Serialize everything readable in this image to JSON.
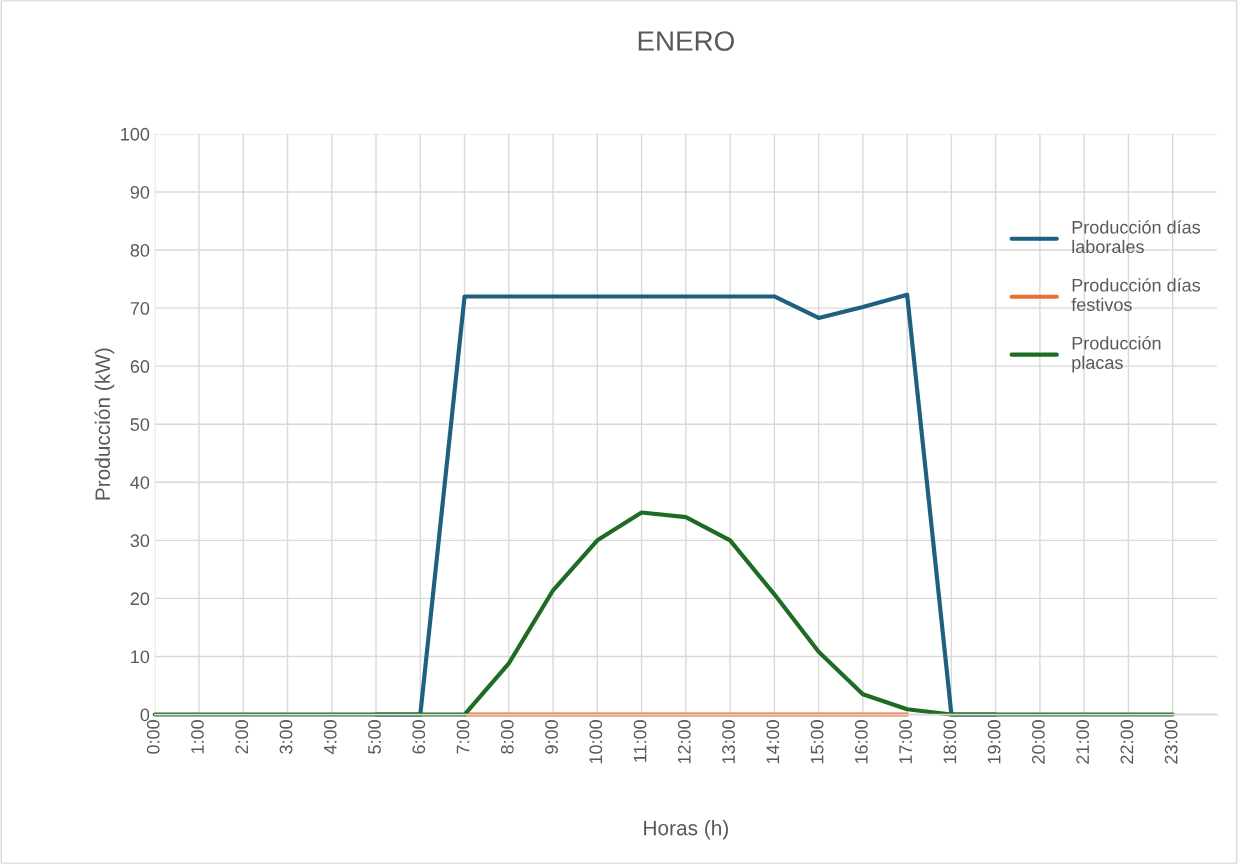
{
  "chart_data": {
    "type": "line",
    "title": "ENERO",
    "xlabel": "Horas (h)",
    "ylabel": "Producción (kW)",
    "categories": [
      "0:00",
      "1:00",
      "2:00",
      "3:00",
      "4:00",
      "5:00",
      "6:00",
      "7:00",
      "8:00",
      "9:00",
      "10:00",
      "11:00",
      "12:00",
      "13:00",
      "14:00",
      "15:00",
      "16:00",
      "17:00",
      "18:00",
      "19:00",
      "20:00",
      "21:00",
      "22:00",
      "23:00"
    ],
    "series": [
      {
        "name": "Producción días laborales",
        "color": "#1f5f80",
        "values": [
          null,
          null,
          null,
          null,
          null,
          0,
          0,
          72,
          72,
          72,
          72,
          72,
          72,
          72,
          72,
          68.3,
          70.2,
          72.3,
          0,
          0,
          null,
          null,
          null,
          null
        ]
      },
      {
        "name": "Producción días festivos",
        "color": "#e97132",
        "values": [
          null,
          null,
          null,
          null,
          null,
          null,
          null,
          0,
          0,
          0,
          0,
          0,
          0,
          0,
          0,
          0,
          0,
          0,
          null,
          null,
          null,
          null,
          null,
          null
        ]
      },
      {
        "name": "Producción placas",
        "color": "#1e6b24",
        "values": [
          0,
          0,
          0,
          0,
          0,
          0,
          0,
          0,
          8.8,
          21.4,
          30,
          34.8,
          34,
          30,
          20.7,
          10.8,
          3.5,
          0.9,
          0,
          0,
          0,
          0,
          0,
          0
        ]
      }
    ],
    "ylim": [
      0,
      100
    ],
    "yticks": [
      0,
      10,
      20,
      30,
      40,
      50,
      60,
      70,
      80,
      90,
      100
    ],
    "grid": true,
    "legend": "right",
    "marker": "none",
    "line_style": "solid"
  }
}
